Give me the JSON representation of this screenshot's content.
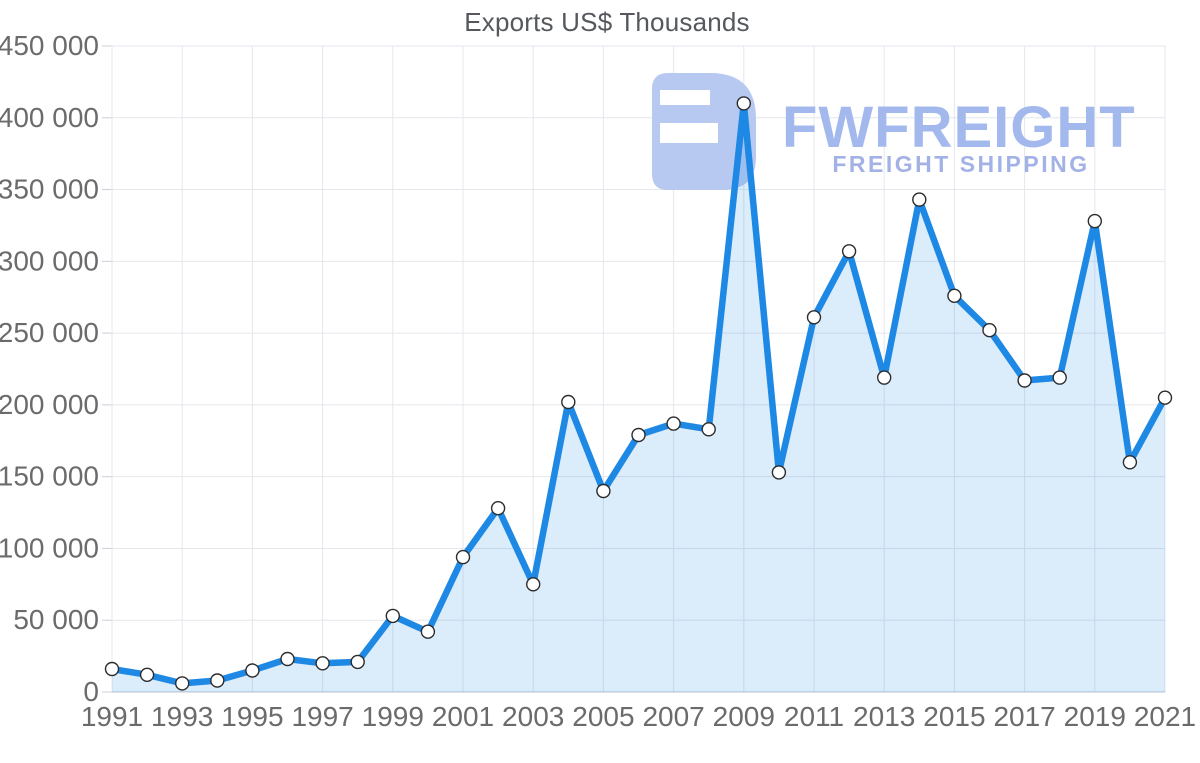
{
  "chart_data": {
    "type": "area",
    "title": "Exports US$ Thousands",
    "x": [
      1991,
      1992,
      1993,
      1994,
      1995,
      1996,
      1997,
      1998,
      1999,
      2000,
      2001,
      2002,
      2003,
      2004,
      2005,
      2006,
      2007,
      2008,
      2009,
      2010,
      2011,
      2012,
      2013,
      2014,
      2015,
      2016,
      2017,
      2018,
      2019,
      2020,
      2021
    ],
    "series": [
      {
        "name": "Exports US$ Thousands",
        "values": [
          16000,
          12000,
          6000,
          8000,
          15000,
          23000,
          20000,
          21000,
          53000,
          42000,
          94000,
          128000,
          75000,
          202000,
          140000,
          179000,
          187000,
          183000,
          410000,
          153000,
          261000,
          307000,
          219000,
          343000,
          276000,
          252000,
          217000,
          219000,
          328000,
          160000,
          205000
        ]
      }
    ],
    "xlabel": "",
    "ylabel": "",
    "ylim": [
      0,
      450000
    ],
    "x_tick_labels": [
      "1991",
      "1993",
      "1995",
      "1997",
      "1999",
      "2001",
      "2003",
      "2005",
      "2007",
      "2009",
      "2011",
      "2013",
      "2015",
      "2017",
      "2019",
      "2021"
    ],
    "y_ticks": [
      0,
      50000,
      100000,
      150000,
      200000,
      250000,
      300000,
      350000,
      400000,
      450000
    ],
    "y_tick_labels": [
      "0",
      "50 000",
      "100 000",
      "150 000",
      "200 000",
      "250 000",
      "300 000",
      "350 000",
      "400 000",
      "450 000"
    ],
    "grid": true,
    "legend": "none",
    "marker_style": "circle"
  },
  "watermark": {
    "brand": "FWFREIGHT",
    "subtitle": "FREIGHT SHIPPING"
  },
  "colors": {
    "line": "#1e88e5",
    "fill": "rgba(30,136,229,0.16)",
    "grid": "#e4e7ec",
    "axis": "#c9cfd8",
    "tick_label": "#6b6b6b",
    "title": "#55585c",
    "marker_fill": "#ffffff",
    "marker_stroke": "#2c2c2c",
    "watermark_logo": "#b7c9f1",
    "watermark_brand": "#a3b9ee",
    "watermark_subtitle": "#a3b2e6"
  }
}
